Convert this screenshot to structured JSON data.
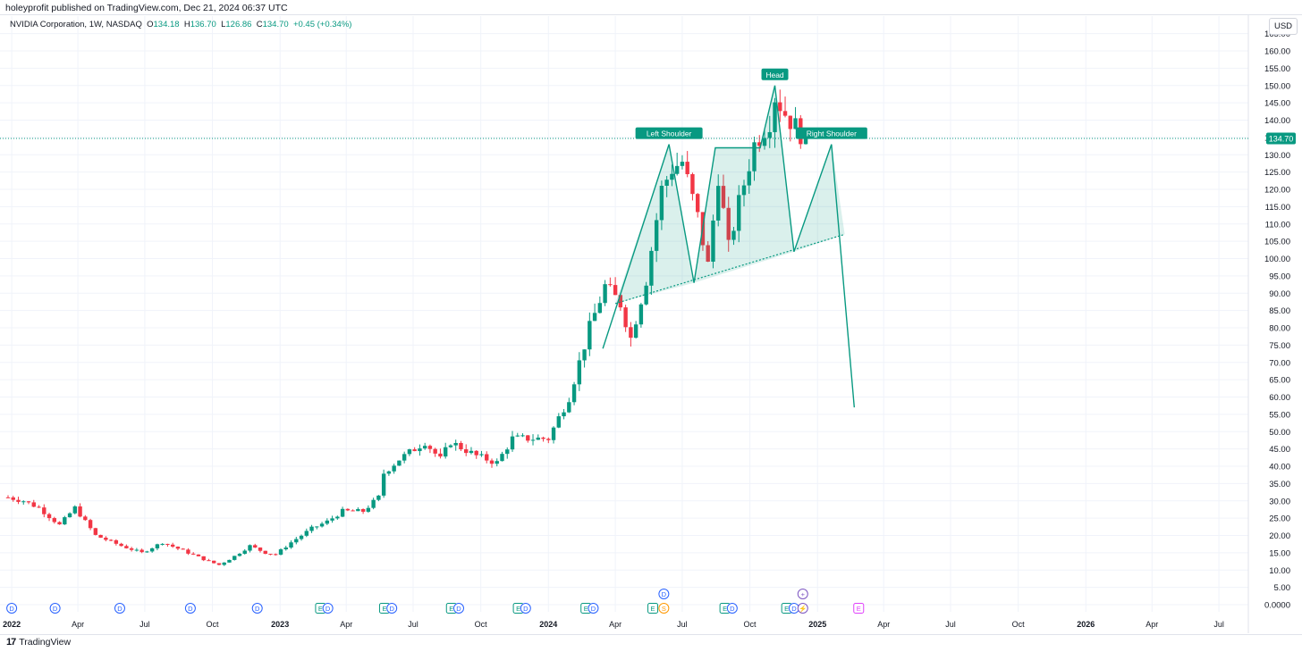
{
  "header": {
    "published_line": "holeyprofit published on TradingView.com, Dec 21, 2024 06:37 UTC"
  },
  "legend": {
    "symbol": "NVIDIA Corporation, 1W, NASDAQ",
    "open_label": "O",
    "open": "134.18",
    "high_label": "H",
    "high": "136.70",
    "low_label": "L",
    "low": "126.86",
    "close_label": "C",
    "close": "134.70",
    "change": "+0.45 (+0.34%)"
  },
  "currency": "USD",
  "footer": {
    "brand": "TradingView",
    "logo_glyph": "17"
  },
  "colors": {
    "up": "#089981",
    "down": "#f23645",
    "pattern": "#089981",
    "pattern_fill": "rgba(8,153,129,0.15)",
    "event_dividend": "#2962ff",
    "event_earnings": "#089981",
    "event_split": "#ff9800",
    "event_future": "#e040fb",
    "event_other": "#7e57c2"
  },
  "chart_data": {
    "type": "candlestick",
    "title": "NVIDIA Corporation, 1W, NASDAQ",
    "ylim": [
      0,
      170
    ],
    "y_ticks": [
      "0.0000",
      "5.00",
      "10.00",
      "15.00",
      "20.00",
      "25.00",
      "30.00",
      "35.00",
      "40.00",
      "45.00",
      "50.00",
      "55.00",
      "60.00",
      "65.00",
      "70.00",
      "75.00",
      "80.00",
      "85.00",
      "90.00",
      "95.00",
      "100.00",
      "105.00",
      "110.00",
      "115.00",
      "120.00",
      "125.00",
      "130.00",
      "135.00",
      "140.00",
      "145.00",
      "150.00",
      "155.00",
      "160.00",
      "165.00"
    ],
    "x_range": [
      "2021-12-27",
      "2026-08-10"
    ],
    "x_ticks": [
      {
        "date": "2022-01-01",
        "label": "2022",
        "bold": true
      },
      {
        "date": "2022-04-01",
        "label": "Apr",
        "bold": false
      },
      {
        "date": "2022-07-01",
        "label": "Jul",
        "bold": false
      },
      {
        "date": "2022-10-01",
        "label": "Oct",
        "bold": false
      },
      {
        "date": "2023-01-01",
        "label": "2023",
        "bold": true
      },
      {
        "date": "2023-04-01",
        "label": "Apr",
        "bold": false
      },
      {
        "date": "2023-07-01",
        "label": "Jul",
        "bold": false
      },
      {
        "date": "2023-10-01",
        "label": "Oct",
        "bold": false
      },
      {
        "date": "2024-01-01",
        "label": "2024",
        "bold": true
      },
      {
        "date": "2024-04-01",
        "label": "Apr",
        "bold": false
      },
      {
        "date": "2024-07-01",
        "label": "Jul",
        "bold": false
      },
      {
        "date": "2024-10-01",
        "label": "Oct",
        "bold": false
      },
      {
        "date": "2025-01-01",
        "label": "2025",
        "bold": true
      },
      {
        "date": "2025-04-01",
        "label": "Apr",
        "bold": false
      },
      {
        "date": "2025-07-01",
        "label": "Jul",
        "bold": false
      },
      {
        "date": "2025-10-01",
        "label": "Oct",
        "bold": false
      },
      {
        "date": "2026-01-01",
        "label": "2026",
        "bold": true
      },
      {
        "date": "2026-04-01",
        "label": "Apr",
        "bold": false
      },
      {
        "date": "2026-07-01",
        "label": "Jul",
        "bold": false
      }
    ],
    "last_price": {
      "value": 134.7,
      "label": "134.70"
    },
    "start_date": "2021-12-27",
    "interval_days": 7,
    "close_path": [
      [
        "2021-12-27",
        31
      ],
      [
        "2022-01-17",
        30
      ],
      [
        "2022-02-07",
        28
      ],
      [
        "2022-03-07",
        23
      ],
      [
        "2022-03-28",
        28
      ],
      [
        "2022-04-25",
        20
      ],
      [
        "2022-05-30",
        17
      ],
      [
        "2022-06-27",
        15
      ],
      [
        "2022-07-25",
        18
      ],
      [
        "2022-08-29",
        15
      ],
      [
        "2022-09-26",
        12.5
      ],
      [
        "2022-10-10",
        11.5
      ],
      [
        "2022-10-31",
        14
      ],
      [
        "2022-11-21",
        17
      ],
      [
        "2022-12-12",
        15
      ],
      [
        "2022-12-26",
        14.5
      ],
      [
        "2023-01-16",
        18
      ],
      [
        "2023-02-13",
        22
      ],
      [
        "2023-03-06",
        24
      ],
      [
        "2023-03-27",
        27
      ],
      [
        "2023-04-24",
        27
      ],
      [
        "2023-05-15",
        31
      ],
      [
        "2023-05-22",
        38
      ],
      [
        "2023-06-12",
        42
      ],
      [
        "2023-07-17",
        47
      ],
      [
        "2023-08-07",
        42
      ],
      [
        "2023-08-21",
        47
      ],
      [
        "2023-09-25",
        43
      ],
      [
        "2023-10-23",
        41
      ],
      [
        "2023-11-13",
        48
      ],
      [
        "2023-12-11",
        48
      ],
      [
        "2024-01-01",
        48
      ],
      [
        "2024-01-29",
        60
      ],
      [
        "2024-02-26",
        80
      ],
      [
        "2024-03-18",
        92
      ],
      [
        "2024-04-08",
        87
      ],
      [
        "2024-04-22",
        77
      ],
      [
        "2024-05-13",
        94
      ],
      [
        "2024-06-03",
        120
      ],
      [
        "2024-06-17",
        126
      ],
      [
        "2024-07-01",
        128
      ],
      [
        "2024-07-22",
        112
      ],
      [
        "2024-08-05",
        98
      ],
      [
        "2024-08-19",
        124
      ],
      [
        "2024-09-02",
        103
      ],
      [
        "2024-09-16",
        116
      ],
      [
        "2024-10-07",
        133
      ],
      [
        "2024-10-28",
        140
      ],
      [
        "2024-11-04",
        147
      ],
      [
        "2024-11-18",
        142
      ],
      [
        "2024-12-02",
        138
      ],
      [
        "2024-12-16",
        134.7
      ]
    ],
    "pattern": {
      "name": "Head and Shoulders",
      "path": [
        [
          "2024-03-15",
          74
        ],
        [
          "2024-06-13",
          133
        ],
        [
          "2024-07-17",
          93
        ],
        [
          "2024-08-15",
          132
        ],
        [
          "2024-10-15",
          132
        ],
        [
          "2024-11-04",
          150
        ],
        [
          "2024-11-30",
          102
        ],
        [
          "2025-01-20",
          133
        ],
        [
          "2025-02-20",
          57
        ]
      ],
      "neckline": [
        [
          "2024-04-01",
          87
        ],
        [
          "2025-02-07",
          107
        ]
      ],
      "fill_polygons": [
        [
          [
            "2024-04-01",
            87
          ],
          [
            "2024-06-13",
            133
          ],
          [
            "2024-07-17",
            93
          ]
        ],
        [
          [
            "2024-07-17",
            93
          ],
          [
            "2024-08-15",
            132
          ],
          [
            "2024-10-15",
            132
          ],
          [
            "2024-11-04",
            150
          ],
          [
            "2024-11-30",
            102
          ]
        ],
        [
          [
            "2024-11-30",
            102
          ],
          [
            "2025-01-20",
            133
          ],
          [
            "2025-02-07",
            107
          ]
        ]
      ],
      "labels": [
        {
          "text": "Left Shoulder",
          "date": "2024-06-13",
          "price": 133
        },
        {
          "text": "Head",
          "date": "2024-11-04",
          "price": 150
        },
        {
          "text": "Right Shoulder",
          "date": "2025-01-20",
          "price": 133
        }
      ]
    },
    "events": [
      {
        "date": "2022-01-01",
        "glyph": "D",
        "kind": "dividend"
      },
      {
        "date": "2022-03-01",
        "glyph": "D",
        "kind": "dividend"
      },
      {
        "date": "2022-05-28",
        "glyph": "D",
        "kind": "dividend"
      },
      {
        "date": "2022-09-01",
        "glyph": "D",
        "kind": "dividend"
      },
      {
        "date": "2022-12-01",
        "glyph": "D",
        "kind": "dividend"
      },
      {
        "date": "2023-02-25",
        "glyph": "E",
        "kind": "earnings"
      },
      {
        "date": "2023-03-07",
        "glyph": "D",
        "kind": "dividend"
      },
      {
        "date": "2023-05-23",
        "glyph": "E",
        "kind": "earnings"
      },
      {
        "date": "2023-06-02",
        "glyph": "D",
        "kind": "dividend"
      },
      {
        "date": "2023-08-22",
        "glyph": "E",
        "kind": "earnings"
      },
      {
        "date": "2023-09-01",
        "glyph": "D",
        "kind": "dividend"
      },
      {
        "date": "2023-11-21",
        "glyph": "E",
        "kind": "earnings"
      },
      {
        "date": "2023-12-01",
        "glyph": "D",
        "kind": "dividend"
      },
      {
        "date": "2024-02-21",
        "glyph": "E",
        "kind": "earnings"
      },
      {
        "date": "2024-03-02",
        "glyph": "D",
        "kind": "dividend"
      },
      {
        "date": "2024-05-22",
        "glyph": "E",
        "kind": "earnings"
      },
      {
        "date": "2024-06-06",
        "glyph": "S",
        "kind": "split"
      },
      {
        "date": "2024-06-06",
        "glyph": "D",
        "kind": "dividend",
        "row": 2
      },
      {
        "date": "2024-08-28",
        "glyph": "E",
        "kind": "earnings"
      },
      {
        "date": "2024-09-07",
        "glyph": "D",
        "kind": "dividend"
      },
      {
        "date": "2024-11-20",
        "glyph": "E",
        "kind": "earnings"
      },
      {
        "date": "2024-11-30",
        "glyph": "D",
        "kind": "dividend"
      },
      {
        "date": "2024-12-12",
        "glyph": "⚡",
        "kind": "other"
      },
      {
        "date": "2024-12-12",
        "glyph": "+",
        "kind": "other",
        "row": 2
      },
      {
        "date": "2025-02-26",
        "glyph": "E",
        "kind": "future"
      }
    ]
  }
}
